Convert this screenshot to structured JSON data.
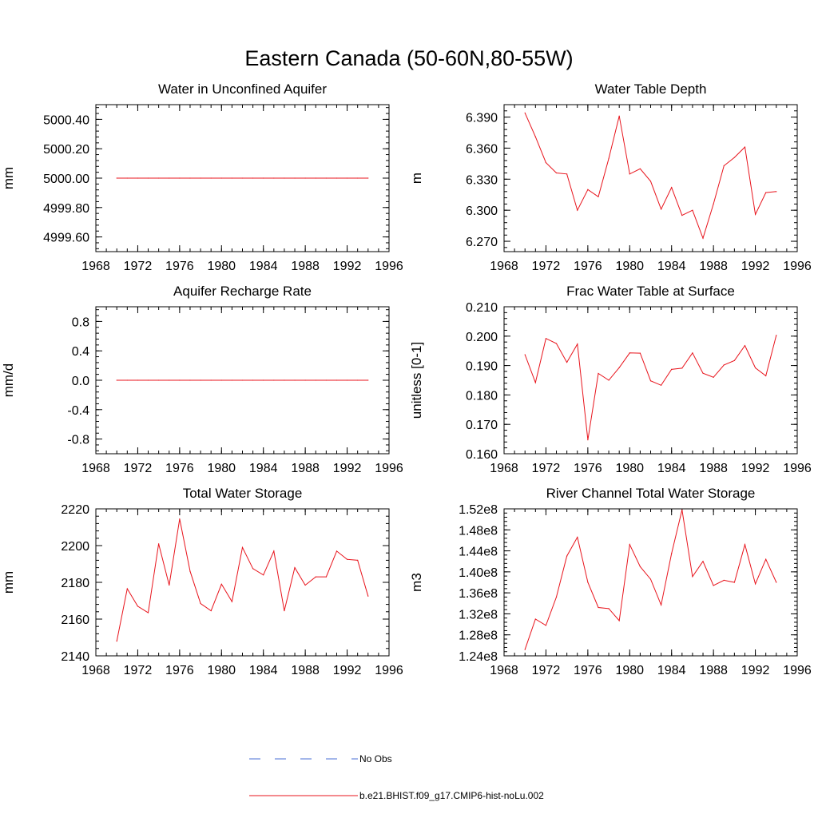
{
  "page_title": "Eastern Canada (50-60N,80-55W)",
  "colors": {
    "model": "#e8141c",
    "obs": "#4a6fd6",
    "axis": "#000000"
  },
  "legend": [
    {
      "label": "No Obs",
      "style": "dashed",
      "color": "#4a6fd6"
    },
    {
      "label": "b.e21.BHIST.f09_g17.CMIP6-hist-noLu.002",
      "style": "solid",
      "color": "#e8141c"
    }
  ],
  "chart_data": [
    {
      "type": "line",
      "title": "Water in Unconfined Aquifer",
      "ylabel": "mm",
      "xlim": [
        1968,
        1996
      ],
      "xticks": [
        1968,
        1972,
        1976,
        1980,
        1984,
        1988,
        1992,
        1996
      ],
      "ylim": [
        4999.5,
        5000.5
      ],
      "yticks": [
        4999.6,
        4999.8,
        5000.0,
        5000.2,
        5000.4
      ],
      "ytick_labels": [
        "4999.60",
        "4999.80",
        "5000.00",
        "5000.20",
        "5000.40"
      ],
      "x": [
        1970,
        1971,
        1972,
        1973,
        1974,
        1975,
        1976,
        1977,
        1978,
        1979,
        1980,
        1981,
        1982,
        1983,
        1984,
        1985,
        1986,
        1987,
        1988,
        1989,
        1990,
        1991,
        1992,
        1993,
        1994
      ],
      "series": [
        {
          "values": [
            5000.0,
            5000.0,
            5000.0,
            5000.0,
            5000.0,
            5000.0,
            5000.0,
            5000.0,
            5000.0,
            5000.0,
            5000.0,
            5000.0,
            5000.0,
            5000.0,
            5000.0,
            5000.0,
            5000.0,
            5000.0,
            5000.0,
            5000.0,
            5000.0,
            5000.0,
            5000.0,
            5000.0,
            5000.0
          ]
        }
      ]
    },
    {
      "type": "line",
      "title": "Water Table Depth",
      "ylabel": "m",
      "xlim": [
        1968,
        1996
      ],
      "xticks": [
        1968,
        1972,
        1976,
        1980,
        1984,
        1988,
        1992,
        1996
      ],
      "ylim": [
        6.26,
        6.402
      ],
      "yticks": [
        6.27,
        6.3,
        6.33,
        6.36,
        6.39
      ],
      "ytick_labels": [
        "6.270",
        "6.300",
        "6.330",
        "6.360",
        "6.390"
      ],
      "x": [
        1970,
        1971,
        1972,
        1973,
        1974,
        1975,
        1976,
        1977,
        1978,
        1979,
        1980,
        1981,
        1982,
        1983,
        1984,
        1985,
        1986,
        1987,
        1988,
        1989,
        1990,
        1991,
        1992,
        1993,
        1994
      ],
      "series": [
        {
          "values": [
            6.394,
            6.371,
            6.346,
            6.336,
            6.335,
            6.3,
            6.32,
            6.313,
            6.35,
            6.391,
            6.335,
            6.34,
            6.328,
            6.301,
            6.322,
            6.295,
            6.3,
            6.273,
            6.306,
            6.343,
            6.351,
            6.361,
            6.296,
            6.317,
            6.318
          ]
        }
      ]
    },
    {
      "type": "line",
      "title": "Aquifer Recharge Rate",
      "ylabel": "mm/d",
      "xlim": [
        1968,
        1996
      ],
      "xticks": [
        1968,
        1972,
        1976,
        1980,
        1984,
        1988,
        1992,
        1996
      ],
      "ylim": [
        -1.0,
        1.0
      ],
      "yticks": [
        -0.8,
        -0.4,
        0.0,
        0.4,
        0.8
      ],
      "ytick_labels": [
        "-0.8",
        "-0.4",
        "0.0",
        "0.4",
        "0.8"
      ],
      "x": [
        1970,
        1971,
        1972,
        1973,
        1974,
        1975,
        1976,
        1977,
        1978,
        1979,
        1980,
        1981,
        1982,
        1983,
        1984,
        1985,
        1986,
        1987,
        1988,
        1989,
        1990,
        1991,
        1992,
        1993,
        1994
      ],
      "series": [
        {
          "values": [
            0.0,
            0.0,
            0.0,
            0.0,
            0.0,
            0.0,
            0.0,
            0.0,
            0.0,
            0.0,
            0.0,
            0.0,
            0.0,
            0.0,
            0.0,
            0.0,
            0.0,
            0.0,
            0.0,
            0.0,
            0.0,
            0.0,
            0.0,
            0.0,
            0.0
          ]
        }
      ]
    },
    {
      "type": "line",
      "title": "Frac Water Table at Surface",
      "ylabel": "unitless [0-1]",
      "xlim": [
        1968,
        1996
      ],
      "xticks": [
        1968,
        1972,
        1976,
        1980,
        1984,
        1988,
        1992,
        1996
      ],
      "ylim": [
        0.16,
        0.21
      ],
      "yticks": [
        0.16,
        0.17,
        0.18,
        0.19,
        0.2,
        0.21
      ],
      "ytick_labels": [
        "0.160",
        "0.170",
        "0.180",
        "0.190",
        "0.200",
        "0.210"
      ],
      "x": [
        1970,
        1971,
        1972,
        1973,
        1974,
        1975,
        1976,
        1977,
        1978,
        1979,
        1980,
        1981,
        1982,
        1983,
        1984,
        1985,
        1986,
        1987,
        1988,
        1989,
        1990,
        1991,
        1992,
        1993,
        1994
      ],
      "series": [
        {
          "values": [
            0.1937,
            0.1842,
            0.1992,
            0.1975,
            0.1911,
            0.1973,
            0.1647,
            0.1873,
            0.185,
            0.1893,
            0.1943,
            0.1942,
            0.1848,
            0.1833,
            0.1887,
            0.1891,
            0.1943,
            0.1874,
            0.186,
            0.1902,
            0.1917,
            0.1968,
            0.1892,
            0.1865,
            0.2003
          ]
        }
      ]
    },
    {
      "type": "line",
      "title": "Total Water Storage",
      "ylabel": "mm",
      "xlim": [
        1968,
        1996
      ],
      "xticks": [
        1968,
        1972,
        1976,
        1980,
        1984,
        1988,
        1992,
        1996
      ],
      "ylim": [
        2140,
        2220
      ],
      "yticks": [
        2140,
        2160,
        2180,
        2200,
        2220
      ],
      "ytick_labels": [
        "2140",
        "2160",
        "2180",
        "2200",
        "2220"
      ],
      "x": [
        1970,
        1971,
        1972,
        1973,
        1974,
        1975,
        1976,
        1977,
        1978,
        1979,
        1980,
        1981,
        1982,
        1983,
        1984,
        1985,
        1986,
        1987,
        1988,
        1989,
        1990,
        1991,
        1992,
        1993,
        1994
      ],
      "series": [
        {
          "values": [
            2148,
            2176.5,
            2167,
            2163.5,
            2201,
            2178.5,
            2214.5,
            2186,
            2168.5,
            2164.5,
            2179,
            2169.5,
            2199,
            2187.5,
            2184,
            2197,
            2164.5,
            2188,
            2178.5,
            2183,
            2183,
            2197,
            2192.5,
            2192,
            2172.5
          ]
        }
      ]
    },
    {
      "type": "line",
      "title": "River Channel Total Water Storage",
      "ylabel": "m3",
      "xlim": [
        1968,
        1996
      ],
      "xticks": [
        1968,
        1972,
        1976,
        1980,
        1984,
        1988,
        1992,
        1996
      ],
      "ylim": [
        124000000.0,
        152000000.0
      ],
      "yticks": [
        124000000.0,
        128000000.0,
        132000000.0,
        136000000.0,
        140000000.0,
        144000000.0,
        148000000.0,
        152000000.0
      ],
      "ytick_labels": [
        "1.24e8",
        "1.28e8",
        "1.32e8",
        "1.36e8",
        "1.40e8",
        "1.44e8",
        "1.48e8",
        "1.52e8"
      ],
      "x": [
        1970,
        1971,
        1972,
        1973,
        1974,
        1975,
        1976,
        1977,
        1978,
        1979,
        1980,
        1981,
        1982,
        1983,
        1984,
        1985,
        1986,
        1987,
        1988,
        1989,
        1990,
        1991,
        1992,
        1993,
        1994
      ],
      "series": [
        {
          "values": [
            125200000.0,
            131000000.0,
            129800000.0,
            135200000.0,
            143000000.0,
            146600000.0,
            138000000.0,
            133200000.0,
            133000000.0,
            130700000.0,
            145200000.0,
            141000000.0,
            138600000.0,
            133700000.0,
            143500000.0,
            151800000.0,
            139100000.0,
            142000000.0,
            137400000.0,
            138400000.0,
            138000000.0,
            145200000.0,
            137700000.0,
            142400000.0,
            138000000.0
          ]
        }
      ]
    }
  ]
}
